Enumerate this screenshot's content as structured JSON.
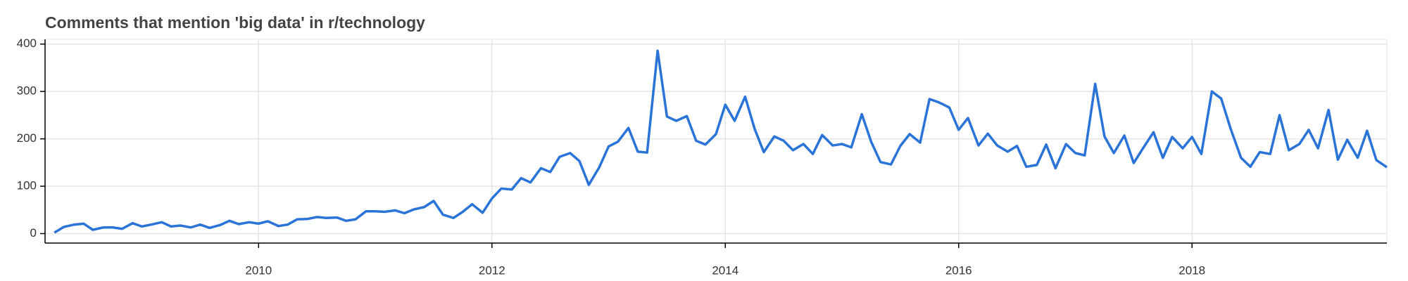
{
  "chart_data": {
    "type": "line",
    "title": "Comments that mention 'big data' in r/technology",
    "x": [
      2008.25,
      2008.33,
      2008.42,
      2008.5,
      2008.58,
      2008.67,
      2008.75,
      2008.83,
      2008.92,
      2009,
      2009.08,
      2009.17,
      2009.25,
      2009.33,
      2009.42,
      2009.5,
      2009.58,
      2009.67,
      2009.75,
      2009.83,
      2009.92,
      2010,
      2010.08,
      2010.17,
      2010.25,
      2010.33,
      2010.42,
      2010.5,
      2010.58,
      2010.67,
      2010.75,
      2010.83,
      2010.92,
      2011,
      2011.08,
      2011.17,
      2011.25,
      2011.33,
      2011.42,
      2011.5,
      2011.58,
      2011.67,
      2011.75,
      2011.83,
      2011.92,
      2012,
      2012.08,
      2012.17,
      2012.25,
      2012.33,
      2012.42,
      2012.5,
      2012.58,
      2012.67,
      2012.75,
      2012.83,
      2012.92,
      2013,
      2013.08,
      2013.17,
      2013.25,
      2013.33,
      2013.42,
      2013.5,
      2013.58,
      2013.67,
      2013.75,
      2013.83,
      2013.92,
      2014,
      2014.08,
      2014.17,
      2014.25,
      2014.33,
      2014.42,
      2014.5,
      2014.58,
      2014.67,
      2014.75,
      2014.83,
      2014.92,
      2015,
      2015.08,
      2015.17,
      2015.25,
      2015.33,
      2015.42,
      2015.5,
      2015.58,
      2015.67,
      2015.75,
      2015.83,
      2015.92,
      2016,
      2016.08,
      2016.17,
      2016.25,
      2016.33,
      2016.42,
      2016.5,
      2016.58,
      2016.67,
      2016.75,
      2016.83,
      2016.92,
      2017,
      2017.08,
      2017.17,
      2017.25,
      2017.33,
      2017.42,
      2017.5,
      2017.58,
      2017.67,
      2017.75,
      2017.83,
      2017.92,
      2018,
      2018.08,
      2018.17,
      2018.25,
      2018.33,
      2018.42,
      2018.5,
      2018.58,
      2018.67,
      2018.75,
      2018.83,
      2018.92,
      2019,
      2019.08,
      2019.17,
      2019.25,
      2019.33,
      2019.42,
      2019.5,
      2019.58,
      2019.67
    ],
    "values": [
      2,
      14,
      19,
      21,
      8,
      13,
      13,
      10,
      22,
      15,
      19,
      24,
      15,
      17,
      13,
      19,
      12,
      18,
      27,
      20,
      24,
      21,
      26,
      16,
      19,
      30,
      31,
      35,
      33,
      34,
      27,
      30,
      47,
      47,
      46,
      49,
      43,
      51,
      56,
      69,
      40,
      33,
      46,
      62,
      44,
      74,
      95,
      93,
      117,
      108,
      138,
      130,
      162,
      170,
      153,
      103,
      140,
      184,
      194,
      223,
      173,
      171,
      386,
      247,
      238,
      248,
      196,
      188,
      210,
      272,
      238,
      289,
      222,
      172,
      205,
      196,
      176,
      189,
      168,
      208,
      186,
      189,
      182,
      252,
      194,
      151,
      146,
      185,
      210,
      192,
      284,
      277,
      266,
      219,
      244,
      186,
      211,
      186,
      173,
      185,
      141,
      145,
      188,
      138,
      189,
      170,
      165,
      316,
      205,
      170,
      207,
      149,
      180,
      214,
      160,
      204,
      180,
      204,
      168,
      300,
      285,
      222,
      160,
      141,
      172,
      168,
      250,
      176,
      189,
      219,
      180,
      261,
      156,
      198,
      160,
      217,
      155,
      140
    ],
    "color": "#2a74d8",
    "xlim": [
      2008.17,
      2019.67
    ],
    "xticks": [
      2010,
      2012,
      2014,
      2016,
      2018
    ],
    "ylim": [
      -20,
      410
    ],
    "yticks": [
      0,
      100,
      200,
      300,
      400
    ],
    "grid": true
  }
}
